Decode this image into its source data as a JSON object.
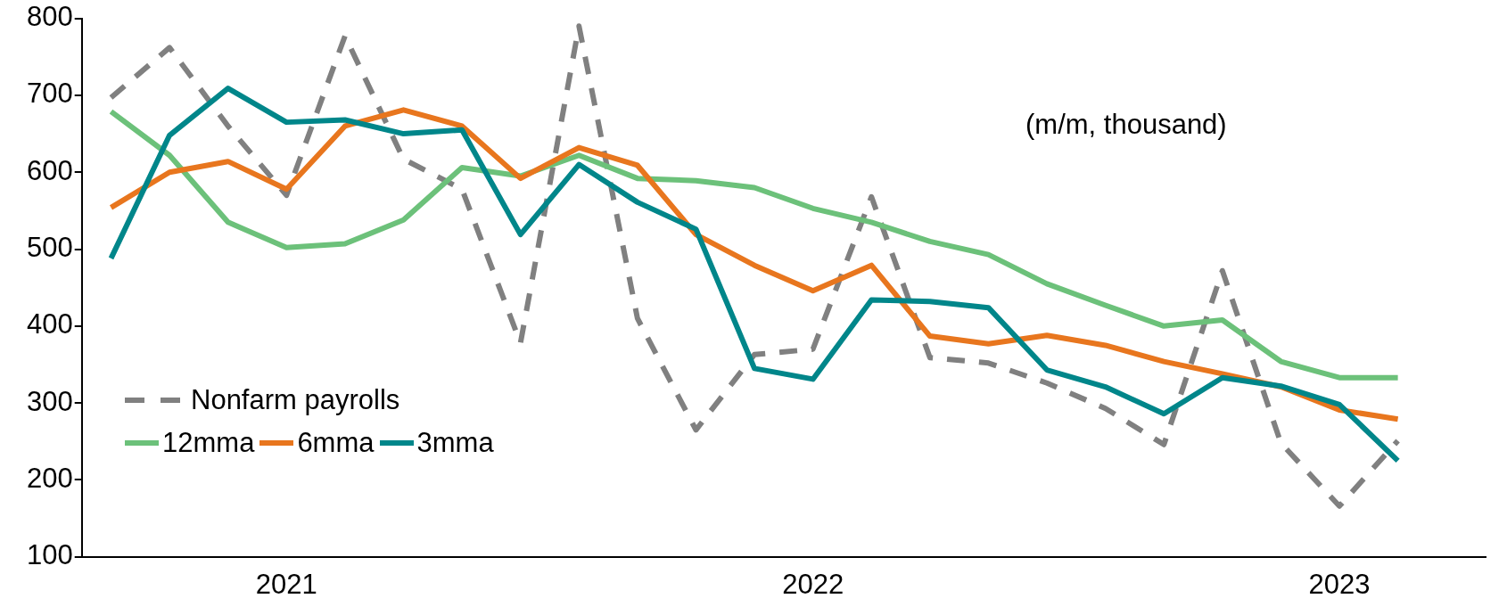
{
  "chart_data": {
    "type": "line",
    "categories": [
      null,
      null,
      null,
      "2021",
      null,
      null,
      null,
      null,
      null,
      null,
      null,
      null,
      "2022",
      null,
      null,
      null,
      null,
      null,
      null,
      null,
      null,
      "2023",
      null,
      null
    ],
    "series": [
      {
        "name": "Nonfarm payrolls",
        "color": "#808080",
        "line_style": "dashed",
        "values": [
          697,
          762,
          660,
          570,
          777,
          617,
          578,
          378,
          790,
          410,
          265,
          363,
          370,
          568,
          359,
          352,
          326,
          293,
          246,
          472,
          248,
          166,
          251,
          null
        ]
      },
      {
        "name": "12mma",
        "color": "#6cc17a",
        "line_style": "solid",
        "values": [
          679,
          622,
          535,
          502,
          507,
          538,
          606,
          595,
          622,
          592,
          589,
          580,
          553,
          535,
          510,
          493,
          455,
          427,
          400,
          408,
          354,
          333,
          333,
          null
        ]
      },
      {
        "name": "6mma",
        "color": "#e8761e",
        "line_style": "solid",
        "values": [
          554,
          600,
          614,
          578,
          660,
          681,
          660,
          592,
          632,
          609,
          519,
          479,
          446,
          479,
          387,
          377,
          388,
          375,
          354,
          338,
          321,
          291,
          279,
          null
        ]
      },
      {
        "name": "3mma",
        "color": "#00868a",
        "line_style": "solid",
        "values": [
          488,
          648,
          709,
          665,
          668,
          650,
          655,
          519,
          610,
          561,
          526,
          345,
          331,
          434,
          432,
          424,
          343,
          321,
          286,
          333,
          322,
          298,
          225,
          null
        ]
      }
    ],
    "ylim": [
      100,
      800
    ],
    "yticks": [
      100,
      200,
      300,
      400,
      500,
      600,
      700,
      800
    ],
    "grid": false,
    "legend": "bottom left",
    "marker": "none",
    "annotations": [
      "(m/m, thousand)"
    ]
  }
}
